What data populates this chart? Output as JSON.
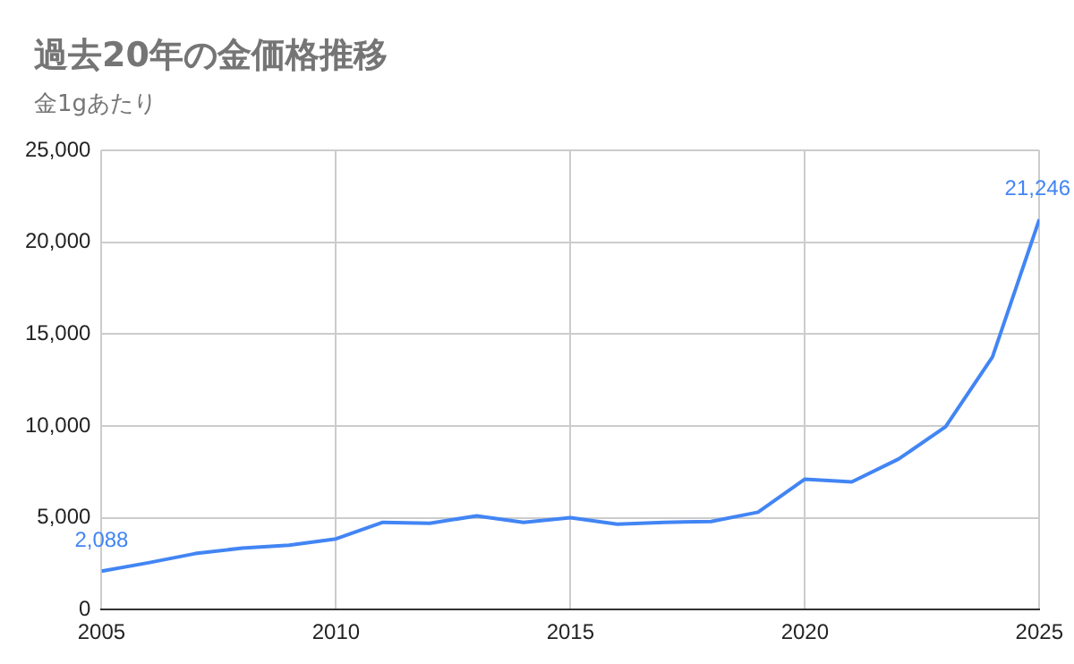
{
  "chart_data": {
    "type": "line",
    "title": "過去20年の金価格推移",
    "subtitle": "金1gあたり",
    "x": [
      2005,
      2006,
      2007,
      2008,
      2009,
      2010,
      2011,
      2012,
      2013,
      2014,
      2015,
      2016,
      2017,
      2018,
      2019,
      2020,
      2021,
      2022,
      2023,
      2024,
      2025
    ],
    "series": [
      {
        "color": "#4285f4",
        "values": [
          2088,
          2550,
          3050,
          3350,
          3500,
          3850,
          4750,
          4700,
          5100,
          4750,
          5000,
          4650,
          4750,
          4800,
          5300,
          7100,
          6950,
          8200,
          9950,
          13750,
          21246
        ],
        "value_labels": [
          "2,088",
          null,
          null,
          null,
          null,
          null,
          null,
          null,
          null,
          null,
          null,
          null,
          null,
          null,
          null,
          null,
          null,
          null,
          null,
          null,
          "21,246"
        ]
      }
    ],
    "xlim": [
      2005,
      2025
    ],
    "xticks": [
      2005,
      2010,
      2015,
      2020,
      2025
    ],
    "ylim": [
      0,
      25000
    ],
    "yticks": [
      {
        "value": 0,
        "label": "0"
      },
      {
        "value": 5000,
        "label": "5,000"
      },
      {
        "value": 10000,
        "label": "10,000"
      },
      {
        "value": 15000,
        "label": "15,000"
      },
      {
        "value": 20000,
        "label": "20,000"
      },
      {
        "value": 25000,
        "label": "25,000"
      }
    ],
    "grid": true,
    "legend": false,
    "marker": "none",
    "line_style": "solid"
  }
}
